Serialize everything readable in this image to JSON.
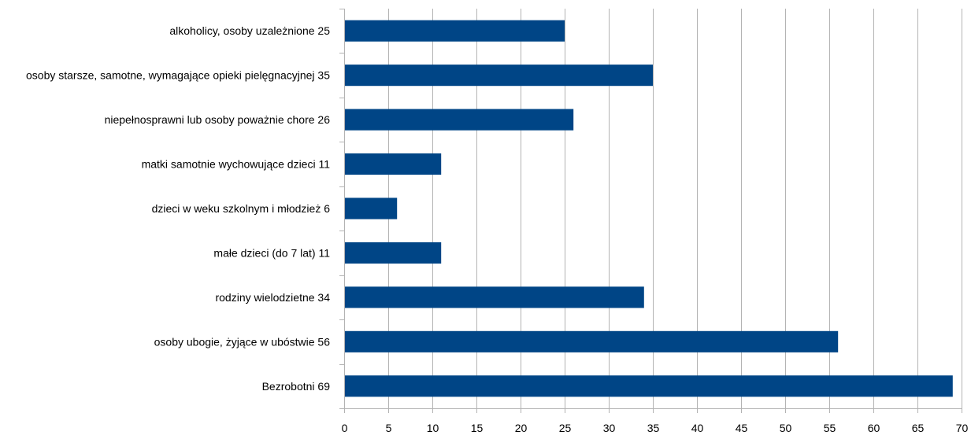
{
  "chart_data": {
    "type": "bar",
    "orientation": "horizontal",
    "categories": [
      "alkoholicy, osoby uzależnione 25",
      "osoby starsze, samotne, wymagające opieki pielęgnacyjnej 35",
      "niepełnosprawni lub osoby poważnie chore 26",
      "matki samotnie wychowujące dzieci 11",
      "dzieci w weku szkolnym i młodzież 6",
      "małe dzieci (do 7 lat) 11",
      "rodziny wielodzietne 34",
      "osoby ubogie, żyjące w ubóstwie 56",
      "Bezrobotni 69"
    ],
    "values": [
      25,
      35,
      26,
      11,
      6,
      11,
      34,
      56,
      69
    ],
    "xlim": [
      0,
      70
    ],
    "xticks": [
      "0",
      "5",
      "10",
      "15",
      "20",
      "25",
      "30",
      "35",
      "40",
      "45",
      "50",
      "55",
      "60",
      "65",
      "70"
    ],
    "grid": true,
    "legend": "none",
    "bar_color": "#004586",
    "grid_color": "#b3b3b3"
  }
}
